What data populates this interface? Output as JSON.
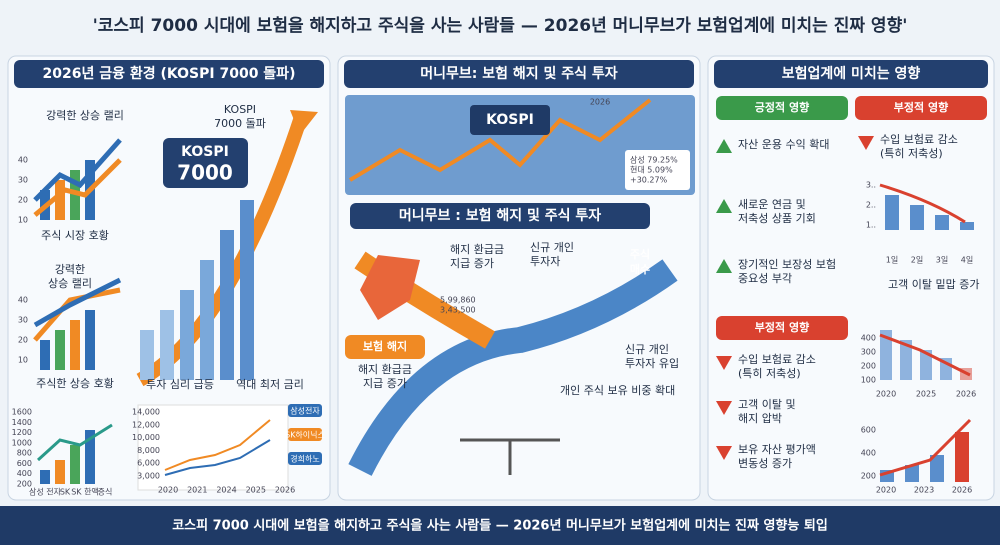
{
  "header": {
    "title": "'코스피 7000 시대에 보험을 해지하고 주식을 사는 사람들 — 2026년 머니무브가 보험업계에 미치는 진짜 영향'"
  },
  "left": {
    "heading": "2026년 금융 환경 (KOSPI 7000 돌파)",
    "chart1": {
      "label": "강력한 상승 랠리",
      "caption": "주식 시장 호황",
      "ticks": [
        "40",
        "30",
        "20",
        "10"
      ]
    },
    "chart2": {
      "label": [
        "강력한",
        "상승 랠리"
      ],
      "caption": "주식한 상승 호황",
      "ticks": [
        "40",
        "30",
        "20",
        "10"
      ]
    },
    "chart3": {
      "ticks": [
        "1600",
        "1400",
        "1200",
        "1000",
        "800",
        "600",
        "400",
        "200"
      ],
      "categories": [
        "삼성 전자",
        "SK",
        "SK 한액",
        "증식"
      ]
    },
    "kospi": {
      "callout": [
        "KOSPI",
        "7000 돌파"
      ],
      "badge": [
        "KOSPI",
        "7000"
      ],
      "captions": [
        "투자 심리 급등",
        "역대 최저 금리"
      ]
    },
    "line_chart": {
      "ticks": [
        "14,000",
        "12,000",
        "10,000",
        "8,000",
        "6,000",
        "3,000"
      ],
      "x": [
        "2020",
        "2021",
        "2024",
        "2025",
        "2026"
      ],
      "legend": [
        "삼성전자",
        "SK하이닉스",
        "경희하노"
      ]
    }
  },
  "middle": {
    "heading": "머니무브: 보험 해지 및 주식 투자",
    "banner": "KOSPI",
    "year": "2026",
    "screen": [
      "삼성 79.25%",
      "현대 5.09%",
      "+30.27%"
    ],
    "subheading": "머니무브 : 보험 해지 및 주식 투자",
    "refund_top": [
      "해지 환급금",
      "지급 증가"
    ],
    "investor_top": [
      "신규 개인",
      "투자자"
    ],
    "buy": [
      "주식",
      "매수"
    ],
    "numbers": [
      "5,99,860",
      "3,43,500"
    ],
    "cancel": "보험 해지",
    "refund_bottom": [
      "해지 환급금",
      "지급 증가"
    ],
    "investor_bottom": [
      "신규 개인",
      "투자자 유입"
    ],
    "holding": "개인 주식 보유 비중 확대"
  },
  "right": {
    "heading": "보험업계에 미치는 영향",
    "positive": {
      "title": "긍정적 영향",
      "items": [
        [
          "자산 운용 수익 확대"
        ],
        [
          "새로운 연금 및",
          "저축성 상품 기회"
        ],
        [
          "장기적인 보장성 보험",
          "중요성 부각"
        ]
      ]
    },
    "negative_top": {
      "title": "부정적 영향",
      "items": [
        [
          "수입 보험료 감소",
          "(특히 저축성)"
        ]
      ],
      "ticks": [
        "3..",
        "2..",
        "1.."
      ],
      "x": [
        "1일",
        "2일",
        "3일",
        "4일"
      ],
      "note": "고객 이탈 밑맙 증가"
    },
    "negative": {
      "title": "부정적 영향",
      "items": [
        [
          "수입 보험료 감소",
          "(특히 저축성)"
        ],
        [
          "고객 이탈 및",
          "해지 압박"
        ],
        [
          "보유 자산 평가액",
          "변동성 증가"
        ]
      ]
    },
    "chart_a": {
      "ticks": [
        "400",
        "300",
        "200",
        "100"
      ],
      "x": [
        "2020",
        "2025",
        "2026"
      ]
    },
    "chart_b": {
      "ticks": [
        "600",
        "400",
        "200"
      ],
      "x": [
        "2020",
        "2023",
        "2026"
      ]
    }
  },
  "footer": {
    "text": "코스피 7000 시대에 보험을 해지하고 주식을 사는 사람들 — 2026년 머니무브가 보험업계에 미치는 진짜 영향능 퇴입"
  }
}
